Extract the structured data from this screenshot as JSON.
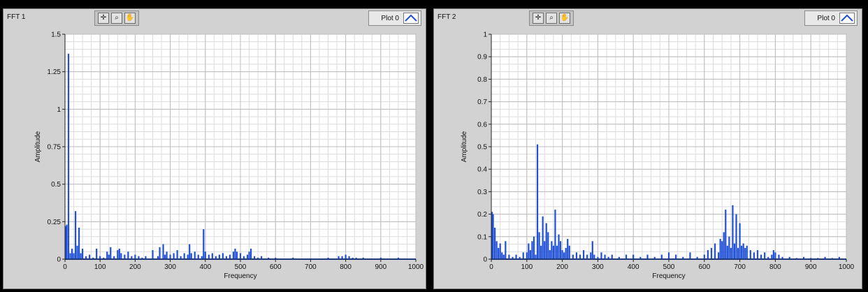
{
  "panels": [
    {
      "title": "FFT 1",
      "legend_label": "Plot 0",
      "tools": [
        "cursor-tool-icon",
        "zoom-tool-icon",
        "pan-tool-icon"
      ],
      "chart_data": {
        "type": "bar",
        "xlabel": "Frequency",
        "ylabel": "Amplitude",
        "xlim": [
          0,
          1000
        ],
        "ylim": [
          0,
          1.5
        ],
        "xticks": [
          0,
          100,
          200,
          300,
          400,
          500,
          600,
          700,
          800,
          900,
          1000
        ],
        "yticks": [
          0,
          0.25,
          0.5,
          0.75,
          1,
          1.25,
          1.5
        ],
        "ytick_labels": [
          "0",
          "0.25",
          "0.5",
          "0.75",
          "1",
          "1.25",
          "1.5"
        ],
        "grid": true,
        "color": "#1f4fd6",
        "x": [
          2,
          5,
          10,
          15,
          20,
          25,
          30,
          35,
          40,
          45,
          50,
          60,
          70,
          80,
          90,
          100,
          110,
          120,
          125,
          130,
          140,
          150,
          155,
          160,
          170,
          180,
          190,
          200,
          210,
          220,
          230,
          250,
          265,
          270,
          280,
          285,
          290,
          300,
          310,
          320,
          330,
          340,
          350,
          355,
          360,
          370,
          380,
          390,
          395,
          400,
          410,
          420,
          430,
          440,
          450,
          460,
          470,
          480,
          485,
          490,
          500,
          510,
          520,
          525,
          530,
          540,
          550,
          560,
          580,
          600,
          650,
          700,
          750,
          780,
          790,
          800,
          810,
          820,
          830,
          850,
          870,
          900,
          920,
          950,
          970
        ],
        "values": [
          0.22,
          0.23,
          1.37,
          0.04,
          0.07,
          0.04,
          0.32,
          0.09,
          0.21,
          0.04,
          0.07,
          0.02,
          0.03,
          0.01,
          0.07,
          0.02,
          0.01,
          0.05,
          0.03,
          0.08,
          0.02,
          0.06,
          0.07,
          0.04,
          0.03,
          0.05,
          0.02,
          0.03,
          0.02,
          0.01,
          0.02,
          0.06,
          0.02,
          0.08,
          0.1,
          0.03,
          0.05,
          0.03,
          0.04,
          0.06,
          0.02,
          0.04,
          0.03,
          0.1,
          0.04,
          0.05,
          0.03,
          0.02,
          0.2,
          0.05,
          0.03,
          0.04,
          0.02,
          0.03,
          0.04,
          0.02,
          0.03,
          0.05,
          0.07,
          0.05,
          0.04,
          0.02,
          0.03,
          0.05,
          0.07,
          0.02,
          0.01,
          0.02,
          0.01,
          0.01,
          0.01,
          0.005,
          0.01,
          0.02,
          0.02,
          0.03,
          0.02,
          0.01,
          0.01,
          0.01,
          0.005,
          0.01,
          0.005,
          0.01,
          0.005
        ]
      }
    },
    {
      "title": "FFT 2",
      "legend_label": "Plot 0",
      "tools": [
        "cursor-tool-icon",
        "zoom-tool-icon",
        "pan-tool-icon"
      ],
      "chart_data": {
        "type": "bar",
        "xlabel": "Frequency",
        "ylabel": "Amplitude",
        "xlim": [
          0,
          1000
        ],
        "ylim": [
          0,
          1
        ],
        "xticks": [
          0,
          100,
          200,
          300,
          400,
          500,
          600,
          700,
          800,
          900,
          1000
        ],
        "yticks": [
          0,
          0.1,
          0.2,
          0.3,
          0.4,
          0.5,
          0.6,
          0.7,
          0.8,
          0.9,
          1
        ],
        "ytick_labels": [
          "0",
          "0.1",
          "0.2",
          "0.3",
          "0.4",
          "0.5",
          "0.6",
          "0.7",
          "0.8",
          "0.9",
          "1"
        ],
        "grid": true,
        "color": "#1f4fd6",
        "x": [
          2,
          5,
          10,
          15,
          20,
          25,
          30,
          35,
          40,
          50,
          60,
          70,
          80,
          90,
          100,
          105,
          110,
          115,
          120,
          125,
          130,
          135,
          140,
          145,
          150,
          155,
          160,
          165,
          170,
          175,
          180,
          185,
          190,
          195,
          200,
          205,
          210,
          215,
          220,
          230,
          240,
          250,
          260,
          270,
          280,
          285,
          290,
          300,
          310,
          320,
          330,
          340,
          360,
          380,
          400,
          420,
          440,
          460,
          480,
          500,
          520,
          540,
          560,
          580,
          600,
          610,
          620,
          630,
          640,
          645,
          650,
          655,
          660,
          665,
          670,
          675,
          680,
          685,
          690,
          695,
          700,
          705,
          710,
          715,
          720,
          730,
          740,
          750,
          760,
          770,
          780,
          790,
          795,
          800,
          810,
          820,
          840,
          860,
          880,
          900,
          920,
          940,
          960,
          980
        ],
        "values": [
          0.21,
          0.2,
          0.14,
          0.08,
          0.05,
          0.07,
          0.03,
          0.02,
          0.08,
          0.02,
          0.01,
          0.02,
          0.01,
          0.03,
          0.03,
          0.07,
          0.04,
          0.08,
          0.1,
          0.02,
          0.51,
          0.12,
          0.06,
          0.19,
          0.08,
          0.16,
          0.12,
          0.04,
          0.08,
          0.06,
          0.22,
          0.06,
          0.11,
          0.08,
          0.04,
          0.03,
          0.05,
          0.09,
          0.06,
          0.02,
          0.03,
          0.02,
          0.04,
          0.02,
          0.03,
          0.08,
          0.02,
          0.01,
          0.03,
          0.02,
          0.01,
          0.02,
          0.01,
          0.02,
          0.02,
          0.01,
          0.02,
          0.01,
          0.02,
          0.03,
          0.02,
          0.01,
          0.03,
          0.01,
          0.02,
          0.04,
          0.05,
          0.07,
          0.03,
          0.09,
          0.08,
          0.12,
          0.22,
          0.06,
          0.1,
          0.05,
          0.24,
          0.07,
          0.2,
          0.05,
          0.16,
          0.06,
          0.07,
          0.05,
          0.06,
          0.04,
          0.03,
          0.04,
          0.02,
          0.03,
          0.01,
          0.02,
          0.04,
          0.03,
          0.02,
          0.01,
          0.01,
          0.005,
          0.01,
          0.005,
          0.005,
          0.01,
          0.005,
          0.01
        ]
      }
    }
  ]
}
